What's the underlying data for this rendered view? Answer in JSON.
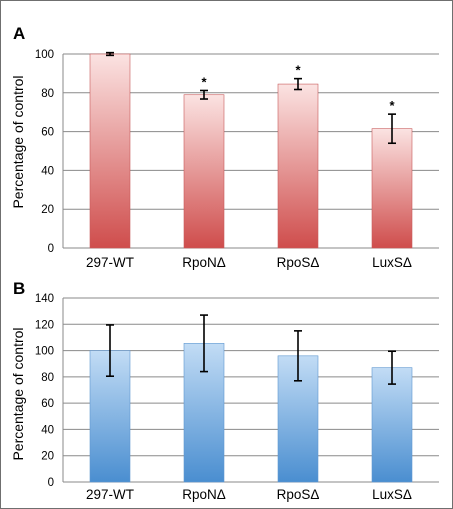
{
  "figure": {
    "panel_a_letter": "A",
    "panel_b_letter": "B"
  },
  "chart_data": [
    {
      "type": "bar",
      "panel": "A",
      "categories": [
        "297-WT",
        "RpoNΔ",
        "RpoSΔ",
        "LuxSΔ"
      ],
      "values": [
        100,
        79,
        84.5,
        61.5
      ],
      "errors": [
        0.7,
        2.2,
        2.8,
        7.5
      ],
      "annotations": [
        "",
        "*",
        "*",
        "*"
      ],
      "ylabel": "Percentage of control",
      "ylim": [
        0,
        100
      ],
      "yticks": [
        "0",
        "20",
        "40",
        "60",
        "80",
        "100"
      ],
      "grid": true,
      "colors": {
        "bar_light": "#fbe3e2",
        "bar_dark": "#cf4d4c",
        "bar_edge": "#c85a5a"
      }
    },
    {
      "type": "bar",
      "panel": "B",
      "categories": [
        "297-WT",
        "RpoNΔ",
        "RpoSΔ",
        "LuxSΔ"
      ],
      "values": [
        100,
        105.5,
        96,
        87
      ],
      "errors": [
        19.5,
        21.5,
        19,
        12.5
      ],
      "ylabel": "Percentage of control",
      "ylim": [
        0,
        140
      ],
      "yticks": [
        "0",
        "20",
        "40",
        "60",
        "80",
        "100",
        "120",
        "140"
      ],
      "grid": true,
      "colors": {
        "bar_light": "#c2dcf5",
        "bar_dark": "#4a8ed0",
        "bar_edge": "#5f97d0"
      }
    }
  ]
}
